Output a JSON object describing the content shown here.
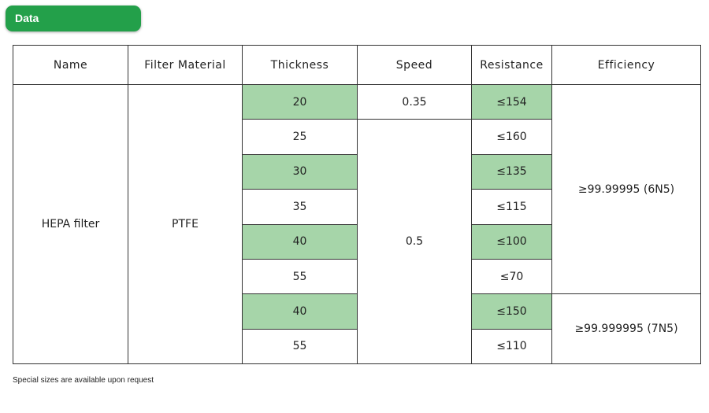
{
  "tab_label": "Data",
  "colors": {
    "tab_green": "#23a04a",
    "highlight_green": "#a6d5a9",
    "border": "#333333"
  },
  "headers": [
    "Name",
    "Filter Material",
    "Thickness",
    "Speed",
    "Resistance",
    "Efficiency"
  ],
  "name": "HEPA filter",
  "material": "PTFE",
  "thickness": [
    "20",
    "25",
    "30",
    "35",
    "40",
    "55",
    "40",
    "55"
  ],
  "speed": [
    "0.35",
    "0.5"
  ],
  "resistance": [
    "≤154",
    "≤160",
    "≤135",
    "≤115",
    "≤100",
    "≤70",
    "≤150",
    "≤110"
  ],
  "efficiency": [
    "≥99.99995 (6N5)",
    "≥99.999995 (7N5)"
  ],
  "note": "Special sizes are available upon request"
}
